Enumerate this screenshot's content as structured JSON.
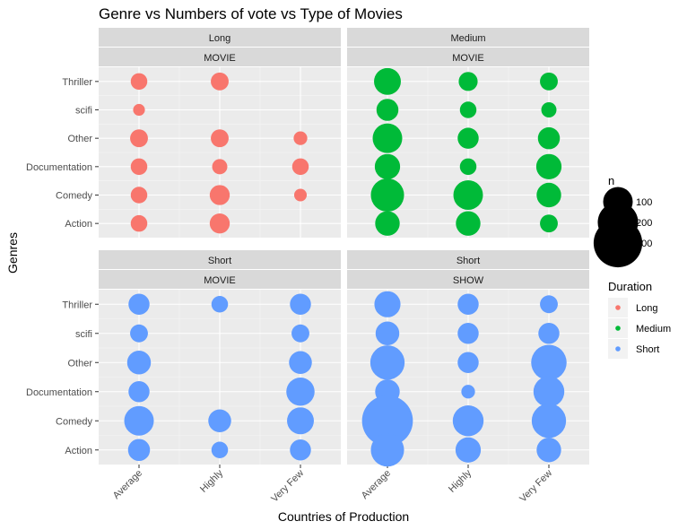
{
  "chart_data": {
    "type": "scatter",
    "title": "Genre vs Numbers of vote vs Type of Movies",
    "xlabel": "Countries of Production",
    "ylabel": "Genres",
    "x_categories": [
      "Average",
      "Highly",
      "Very Few"
    ],
    "y_categories": [
      "Action",
      "Comedy",
      "Documentation",
      "Other",
      "scifi",
      "Thriller"
    ],
    "colors": {
      "Long": "#f8766d",
      "Medium": "#00ba38",
      "Short": "#619cff"
    },
    "size_legend": {
      "title": "n",
      "values": [
        100,
        200,
        300
      ]
    },
    "color_legend": {
      "title": "Duration",
      "entries": [
        "Long",
        "Medium",
        "Short"
      ]
    },
    "panels": [
      {
        "duration": "Long",
        "type": "MOVIE",
        "points": [
          {
            "x": "Average",
            "y": "Thriller",
            "n": 25
          },
          {
            "x": "Highly",
            "y": "Thriller",
            "n": 30
          },
          {
            "x": "Average",
            "y": "scifi",
            "n": 10
          },
          {
            "x": "Average",
            "y": "Other",
            "n": 30
          },
          {
            "x": "Highly",
            "y": "Other",
            "n": 30
          },
          {
            "x": "Very Few",
            "y": "Other",
            "n": 15
          },
          {
            "x": "Average",
            "y": "Documentation",
            "n": 25
          },
          {
            "x": "Highly",
            "y": "Documentation",
            "n": 20
          },
          {
            "x": "Very Few",
            "y": "Documentation",
            "n": 25
          },
          {
            "x": "Average",
            "y": "Comedy",
            "n": 25
          },
          {
            "x": "Highly",
            "y": "Comedy",
            "n": 40
          },
          {
            "x": "Very Few",
            "y": "Comedy",
            "n": 12
          },
          {
            "x": "Average",
            "y": "Action",
            "n": 25
          },
          {
            "x": "Highly",
            "y": "Action",
            "n": 40
          }
        ]
      },
      {
        "duration": "Medium",
        "type": "MOVIE",
        "points": [
          {
            "x": "Average",
            "y": "Thriller",
            "n": 80
          },
          {
            "x": "Highly",
            "y": "Thriller",
            "n": 35
          },
          {
            "x": "Very Few",
            "y": "Thriller",
            "n": 30
          },
          {
            "x": "Average",
            "y": "scifi",
            "n": 50
          },
          {
            "x": "Highly",
            "y": "scifi",
            "n": 25
          },
          {
            "x": "Very Few",
            "y": "scifi",
            "n": 20
          },
          {
            "x": "Average",
            "y": "Other",
            "n": 100
          },
          {
            "x": "Highly",
            "y": "Other",
            "n": 45
          },
          {
            "x": "Very Few",
            "y": "Other",
            "n": 50
          },
          {
            "x": "Average",
            "y": "Documentation",
            "n": 70
          },
          {
            "x": "Highly",
            "y": "Documentation",
            "n": 25
          },
          {
            "x": "Very Few",
            "y": "Documentation",
            "n": 70
          },
          {
            "x": "Average",
            "y": "Comedy",
            "n": 130
          },
          {
            "x": "Highly",
            "y": "Comedy",
            "n": 100
          },
          {
            "x": "Very Few",
            "y": "Comedy",
            "n": 65
          },
          {
            "x": "Average",
            "y": "Action",
            "n": 65
          },
          {
            "x": "Highly",
            "y": "Action",
            "n": 65
          },
          {
            "x": "Very Few",
            "y": "Action",
            "n": 30
          }
        ]
      },
      {
        "duration": "Short",
        "type": "MOVIE",
        "points": [
          {
            "x": "Average",
            "y": "Thriller",
            "n": 45
          },
          {
            "x": "Highly",
            "y": "Thriller",
            "n": 25
          },
          {
            "x": "Very Few",
            "y": "Thriller",
            "n": 45
          },
          {
            "x": "Average",
            "y": "scifi",
            "n": 30
          },
          {
            "x": "Very Few",
            "y": "scifi",
            "n": 30
          },
          {
            "x": "Average",
            "y": "Other",
            "n": 60
          },
          {
            "x": "Very Few",
            "y": "Other",
            "n": 55
          },
          {
            "x": "Average",
            "y": "Documentation",
            "n": 45
          },
          {
            "x": "Very Few",
            "y": "Documentation",
            "n": 90
          },
          {
            "x": "Average",
            "y": "Comedy",
            "n": 100
          },
          {
            "x": "Highly",
            "y": "Comedy",
            "n": 55
          },
          {
            "x": "Very Few",
            "y": "Comedy",
            "n": 80
          },
          {
            "x": "Average",
            "y": "Action",
            "n": 50
          },
          {
            "x": "Highly",
            "y": "Action",
            "n": 25
          },
          {
            "x": "Very Few",
            "y": "Action",
            "n": 45
          }
        ]
      },
      {
        "duration": "Short",
        "type": "SHOW",
        "points": [
          {
            "x": "Average",
            "y": "Thriller",
            "n": 75
          },
          {
            "x": "Highly",
            "y": "Thriller",
            "n": 45
          },
          {
            "x": "Very Few",
            "y": "Thriller",
            "n": 30
          },
          {
            "x": "Average",
            "y": "scifi",
            "n": 60
          },
          {
            "x": "Highly",
            "y": "scifi",
            "n": 45
          },
          {
            "x": "Very Few",
            "y": "scifi",
            "n": 45
          },
          {
            "x": "Average",
            "y": "Other",
            "n": 140
          },
          {
            "x": "Highly",
            "y": "Other",
            "n": 45
          },
          {
            "x": "Very Few",
            "y": "Other",
            "n": 150
          },
          {
            "x": "Average",
            "y": "Documentation",
            "n": 65
          },
          {
            "x": "Highly",
            "y": "Documentation",
            "n": 15
          },
          {
            "x": "Very Few",
            "y": "Documentation",
            "n": 110
          },
          {
            "x": "Average",
            "y": "Comedy",
            "n": 330
          },
          {
            "x": "Highly",
            "y": "Comedy",
            "n": 110
          },
          {
            "x": "Very Few",
            "y": "Comedy",
            "n": 140
          },
          {
            "x": "Average",
            "y": "Action",
            "n": 130
          },
          {
            "x": "Highly",
            "y": "Action",
            "n": 70
          },
          {
            "x": "Very Few",
            "y": "Action",
            "n": 65
          }
        ]
      }
    ]
  }
}
